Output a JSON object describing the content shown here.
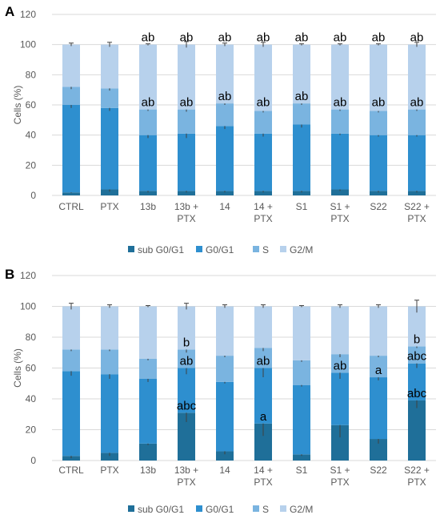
{
  "colors": {
    "sub_g0g1": "#1f6f99",
    "g0g1": "#2e8fcf",
    "s": "#7ab4e0",
    "g2m": "#b7d1ec"
  },
  "chart_data": [
    {
      "type": "bar",
      "stacked": true,
      "panel": "A",
      "ylabel": "Cells (%)",
      "ylim": [
        0,
        120
      ],
      "yticks": [
        0,
        20,
        40,
        60,
        80,
        100,
        120
      ],
      "grid": true,
      "legend_position": "bottom",
      "categories": [
        "CTRL",
        "PTX",
        "13b",
        "13b +\nPTX",
        "14",
        "14 +\nPTX",
        "S1",
        "S1 +\nPTX",
        "S22",
        "S22 +\nPTX"
      ],
      "series": [
        {
          "name": "sub G0/G1",
          "values": [
            2,
            4,
            3,
            3,
            3,
            3,
            3,
            4,
            3,
            3
          ],
          "errors": [
            0.5,
            1.5,
            1,
            1,
            1,
            1,
            1,
            1,
            1,
            1
          ]
        },
        {
          "name": "G0/G1",
          "values": [
            58,
            54,
            37,
            38,
            43,
            38,
            44,
            37,
            37,
            37
          ],
          "errors": [
            2,
            2,
            2,
            3,
            2,
            2,
            2,
            1,
            1,
            1
          ]
        },
        {
          "name": "S",
          "values": [
            12,
            13,
            17,
            16,
            15,
            15,
            14,
            16,
            16,
            17
          ],
          "errors": [
            1.5,
            1.5,
            1,
            1.5,
            1,
            1,
            1,
            1,
            1,
            1
          ]
        },
        {
          "name": "G2/M",
          "values": [
            28,
            29,
            43,
            43,
            39,
            44,
            39,
            43,
            44,
            43
          ],
          "errors": [
            1,
            1.5,
            0.5,
            2,
            1,
            1.5,
            0.5,
            0.5,
            0.5,
            1.5
          ]
        }
      ],
      "annotations": [
        {
          "category": "13b",
          "level": 100,
          "text": "ab"
        },
        {
          "category": "13b",
          "level": 57,
          "text": "ab"
        },
        {
          "category": "13b +\nPTX",
          "level": 100,
          "text": "ab"
        },
        {
          "category": "13b +\nPTX",
          "level": 57,
          "text": "ab"
        },
        {
          "category": "14",
          "level": 100,
          "text": "ab"
        },
        {
          "category": "14",
          "level": 61,
          "text": "ab"
        },
        {
          "category": "14 +\nPTX",
          "level": 100,
          "text": "ab"
        },
        {
          "category": "14 +\nPTX",
          "level": 57,
          "text": "ab"
        },
        {
          "category": "S1",
          "level": 100,
          "text": "ab"
        },
        {
          "category": "S1",
          "level": 61,
          "text": "ab"
        },
        {
          "category": "S1 +\nPTX",
          "level": 100,
          "text": "ab"
        },
        {
          "category": "S1 +\nPTX",
          "level": 57,
          "text": "ab"
        },
        {
          "category": "S22",
          "level": 100,
          "text": "ab"
        },
        {
          "category": "S22",
          "level": 57,
          "text": "ab"
        },
        {
          "category": "S22 +\nPTX",
          "level": 100,
          "text": "ab"
        },
        {
          "category": "S22 +\nPTX",
          "level": 57,
          "text": "ab"
        }
      ]
    },
    {
      "type": "bar",
      "stacked": true,
      "panel": "B",
      "ylabel": "Cells (%)",
      "ylim": [
        0,
        120
      ],
      "yticks": [
        0,
        20,
        40,
        60,
        80,
        100,
        120
      ],
      "grid": true,
      "legend_position": "bottom",
      "categories": [
        "CTRL",
        "PTX",
        "13b",
        "13b +\nPTX",
        "14",
        "14 +\nPTX",
        "S1",
        "S1 +\nPTX",
        "S22",
        "S22 +\nPTX"
      ],
      "series": [
        {
          "name": "sub G0/G1",
          "values": [
            3,
            5,
            11,
            31,
            6,
            24,
            4,
            23,
            14,
            39
          ],
          "errors": [
            1.5,
            2,
            1,
            6,
            2,
            8,
            1,
            8,
            3,
            5
          ]
        },
        {
          "name": "G0/G1",
          "values": [
            55,
            51,
            42,
            29,
            45,
            36,
            45,
            34,
            40,
            24
          ],
          "errors": [
            3,
            3,
            2,
            4,
            1,
            6,
            1,
            4,
            2,
            3
          ]
        },
        {
          "name": "S",
          "values": [
            14,
            16,
            13,
            12,
            17,
            13,
            16,
            12,
            14,
            11
          ],
          "errors": [
            1,
            1,
            1,
            2,
            1,
            2,
            1,
            2,
            1,
            1
          ]
        },
        {
          "name": "G2/M",
          "values": [
            28,
            28,
            34,
            28,
            32,
            27,
            35,
            31,
            32,
            26
          ],
          "errors": [
            2,
            1,
            0.5,
            2,
            1,
            1,
            0.5,
            1,
            1,
            4
          ]
        }
      ],
      "annotations": [
        {
          "category": "13b +\nPTX",
          "level": 72,
          "text": "b"
        },
        {
          "category": "13b +\nPTX",
          "level": 60,
          "text": "ab"
        },
        {
          "category": "13b +\nPTX",
          "level": 31,
          "text": "abc"
        },
        {
          "category": "14 +\nPTX",
          "level": 60,
          "text": "ab"
        },
        {
          "category": "14 +\nPTX",
          "level": 24,
          "text": "a"
        },
        {
          "category": "S1 +\nPTX",
          "level": 57,
          "text": "ab"
        },
        {
          "category": "S22",
          "level": 54,
          "text": "a"
        },
        {
          "category": "S22 +\nPTX",
          "level": 74,
          "text": "b"
        },
        {
          "category": "S22 +\nPTX",
          "level": 63,
          "text": "abc"
        },
        {
          "category": "S22 +\nPTX",
          "level": 39,
          "text": "abc"
        }
      ]
    }
  ]
}
